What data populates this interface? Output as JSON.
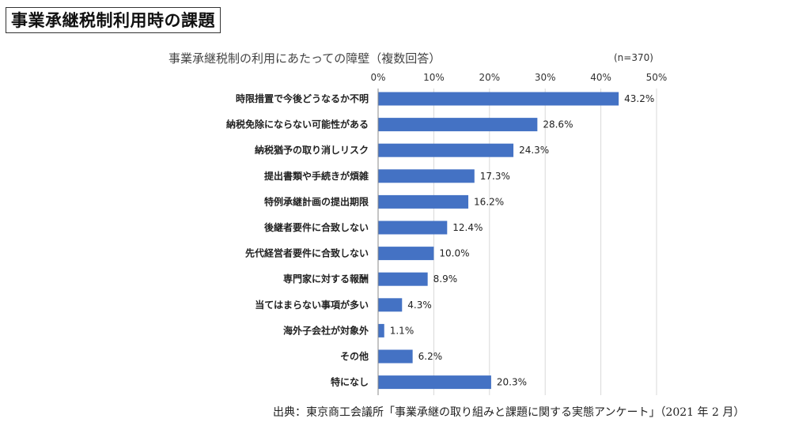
{
  "page_title": "事業承継税制利用時の課題",
  "source": "出典：東京商工会議所「事業承継の取り組みと課題に関する実態アンケート」（2021 年 2 月）",
  "chart_data": {
    "type": "bar",
    "orientation": "horizontal",
    "title": "事業承継税制の利用にあたっての障壁（複数回答）",
    "note": "(n=370)",
    "categories": [
      "時限措置で今後どうなるか不明",
      "納税免除にならない可能性がある",
      "納税猶予の取り消しリスク",
      "提出書類や手続きが煩雑",
      "特例承継計画の提出期限",
      "後継者要件に合致しない",
      "先代経営者要件に合致しない",
      "専門家に対する報酬",
      "当てはまらない事項が多い",
      "海外子会社が対象外",
      "その他",
      "特になし"
    ],
    "values": [
      43.2,
      28.6,
      24.3,
      17.3,
      16.2,
      12.4,
      10.0,
      8.9,
      4.3,
      1.1,
      6.2,
      20.3
    ],
    "value_labels": [
      "43.2%",
      "28.6%",
      "24.3%",
      "17.3%",
      "16.2%",
      "12.4%",
      "10.0%",
      "8.9%",
      "4.3%",
      "1.1%",
      "6.2%",
      "20.3%"
    ],
    "x_ticks": [
      "0%",
      "10%",
      "20%",
      "30%",
      "40%",
      "50%"
    ],
    "xlim": [
      0,
      50
    ],
    "grid": true,
    "bar_color": "#4472c4",
    "grid_color": "#d9d9d9"
  }
}
